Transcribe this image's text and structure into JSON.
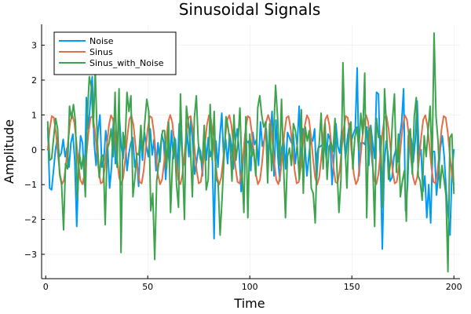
{
  "chart_data": {
    "type": "line",
    "title": "Sinusoidal Signals",
    "xlabel": "Time",
    "ylabel": "Amplitude",
    "xlim": [
      -2,
      203
    ],
    "ylim": [
      -3.7,
      3.6
    ],
    "xticks": [
      0,
      50,
      100,
      150,
      200
    ],
    "yticks": [
      -3,
      -2,
      -1,
      0,
      1,
      2,
      3
    ],
    "grid": true,
    "legend_position": "top-left",
    "x_start": 1,
    "x_end": 200,
    "sinus_period_samples": 9.6,
    "series": [
      {
        "name": "Noise",
        "color": "#009AF9",
        "values": [
          0.65,
          -1.1,
          -1.15,
          -0.6,
          0.0,
          0.35,
          -0.2,
          -0.1,
          0.3,
          -0.2,
          0.05,
          -0.5,
          0.2,
          0.45,
          -0.3,
          -2.2,
          -0.5,
          0.4,
          0.2,
          -1.0,
          1.5,
          0.6,
          1.35,
          2.1,
          0.2,
          -0.45,
          0.5,
          1.0,
          -0.5,
          -0.3,
          0.55,
          0.05,
          -1.1,
          -0.5,
          0.9,
          -0.4,
          0.3,
          1.0,
          0.1,
          -0.25,
          0.4,
          -0.6,
          -0.1,
          0.2,
          0.35,
          -0.5,
          -0.2,
          -1.05,
          0.45,
          -0.3,
          0.5,
          0.1,
          -0.2,
          0.6,
          -0.15,
          0.3,
          -0.6,
          0.2,
          -0.35,
          0.45,
          0.2,
          -0.85,
          0.1,
          -0.45,
          0.55,
          -0.25,
          0.3,
          -0.6,
          0.75,
          0.25,
          -0.45,
          -0.4,
          0.55,
          -0.2,
          0.9,
          0.15,
          -0.7,
          -0.35,
          0.1,
          -0.05,
          -0.75,
          0.5,
          -0.3,
          0.35,
          -0.2,
          0.05,
          -2.55,
          0.25,
          -0.5,
          0.4,
          1.05,
          -0.25,
          0.3,
          -0.4,
          0.45,
          0.15,
          -0.55,
          0.25,
          0.6,
          -0.05,
          -1.2,
          -0.35,
          0.45,
          0.2,
          0.25,
          -0.6,
          0.5,
          0.15,
          0.3,
          -0.45,
          0.8,
          0.1,
          0.3,
          0.6,
          -0.3,
          0.4,
          1.1,
          -0.75,
          0.85,
          -0.2,
          -0.9,
          0.05,
          0.3,
          -0.55,
          0.5,
          0.35,
          0.2,
          0.45,
          -0.4,
          0.15,
          1.25,
          -0.5,
          0.6,
          0.15,
          -0.75,
          -0.2,
          0.35,
          0.25,
          0.6,
          -0.9,
          0.05,
          0.1,
          0.15,
          0.35,
          -0.25,
          0.45,
          0.3,
          -1.0,
          -0.2,
          0.75,
          0.1,
          -0.1,
          0.55,
          0.45,
          -0.25,
          0.35,
          0.75,
          0.25,
          0.45,
          0.6,
          2.35,
          -0.75,
          0.2,
          0.2,
          0.15,
          0.65,
          -0.45,
          0.7,
          0.2,
          -0.25,
          1.65,
          1.6,
          -0.4,
          -2.85,
          -0.4,
          0.25,
          -0.15,
          -0.9,
          -0.8,
          -0.2,
          0.0,
          -0.35,
          0.35,
          0.8,
          1.75,
          -1.75,
          -1.1,
          0.45,
          0.3,
          -0.35,
          0.25,
          1.4,
          -0.2,
          0.0,
          -1.2,
          -0.75,
          -1.95,
          -1.0,
          -2.1,
          -0.05,
          -0.05,
          -1.3,
          -0.7,
          0.05,
          0.4,
          -0.2,
          -1.15,
          -1.85,
          -2.45,
          -0.6,
          0.0
        ]
      },
      {
        "name": "Sinus",
        "color": "#E26F46",
        "values": []
      },
      {
        "name": "Sinus_with_Noise",
        "color": "#3DA44D",
        "values": [
          0.8,
          -0.3,
          -0.25,
          0.35,
          0.9,
          0.6,
          -0.7,
          -1.0,
          -2.3,
          -0.4,
          -0.55,
          1.25,
          0.9,
          1.3,
          0.8,
          -1.4,
          -0.1,
          -0.55,
          -0.15,
          -1.35,
          1.0,
          2.1,
          1.8,
          0.65,
          2.25,
          0.3,
          -0.8,
          -0.2,
          -0.15,
          -2.15,
          0.0,
          0.2,
          0.6,
          -0.2,
          1.65,
          -0.5,
          1.75,
          -2.95,
          0.5,
          0.05,
          1.65,
          1.1,
          1.55,
          -1.35,
          -0.8,
          -0.1,
          -0.15,
          0.7,
          -0.1,
          0.8,
          1.45,
          1.1,
          -1.75,
          -1.25,
          -3.15,
          -0.9,
          -0.4,
          0.15,
          0.55,
          0.55,
          -0.55,
          0.8,
          -1.8,
          -0.3,
          0.35,
          -1.0,
          -1.65,
          1.6,
          -0.25,
          -2.0,
          1.25,
          0.75,
          0.15,
          -1.35,
          0.9,
          1.55,
          0.2,
          -0.25,
          -0.4,
          0.7,
          -1.15,
          -0.85,
          1.3,
          -0.3,
          1.1,
          -0.85,
          -0.95,
          -2.45,
          -1.4,
          -0.2,
          0.95,
          0.65,
          0.2,
          -0.9,
          1.0,
          -0.3,
          0.2,
          1.2,
          -0.5,
          -1.8,
          0.95,
          -1.95,
          0.45,
          -0.2,
          0.0,
          -0.75,
          1.2,
          1.55,
          1.0,
          0.65,
          0.8,
          -0.95,
          0.75,
          -0.6,
          0.45,
          1.85,
          0.95,
          -0.45,
          1.45,
          -0.4,
          -1.95,
          -0.2,
          0.05,
          -0.45,
          0.75,
          0.55,
          0.05,
          -0.85,
          1.15,
          -1.25,
          0.65,
          0.25,
          0.55,
          -1.1,
          -1.25,
          -2.1,
          -0.1,
          0.15,
          1.05,
          -0.55,
          0.75,
          -0.85,
          0.1,
          0.2,
          -0.05,
          0.9,
          -0.55,
          -1.8,
          -0.85,
          2.5,
          0.25,
          -1.1,
          0.5,
          0.8,
          -0.55,
          0.35,
          0.65,
          0.0,
          1.05,
          0.45,
          2.2,
          -1.95,
          0.55,
          0.65,
          -0.35,
          -2.2,
          0.9,
          0.35,
          0.4,
          -1.65,
          1.75,
          0.65,
          -0.85,
          -0.35,
          0.85,
          1.6,
          -0.65,
          0.45,
          -1.35,
          -0.9,
          -0.6,
          -2.05,
          0.4,
          0.6,
          -0.7,
          0.95,
          1.5,
          -0.75,
          -0.9,
          -1.45,
          0.4,
          -0.2,
          0.55,
          1.25,
          -0.4,
          3.35,
          0.95,
          0.25,
          -1.1,
          -0.45,
          -0.85,
          -1.3,
          -3.5,
          0.35,
          0.45,
          -1.25
        ]
      }
    ]
  }
}
